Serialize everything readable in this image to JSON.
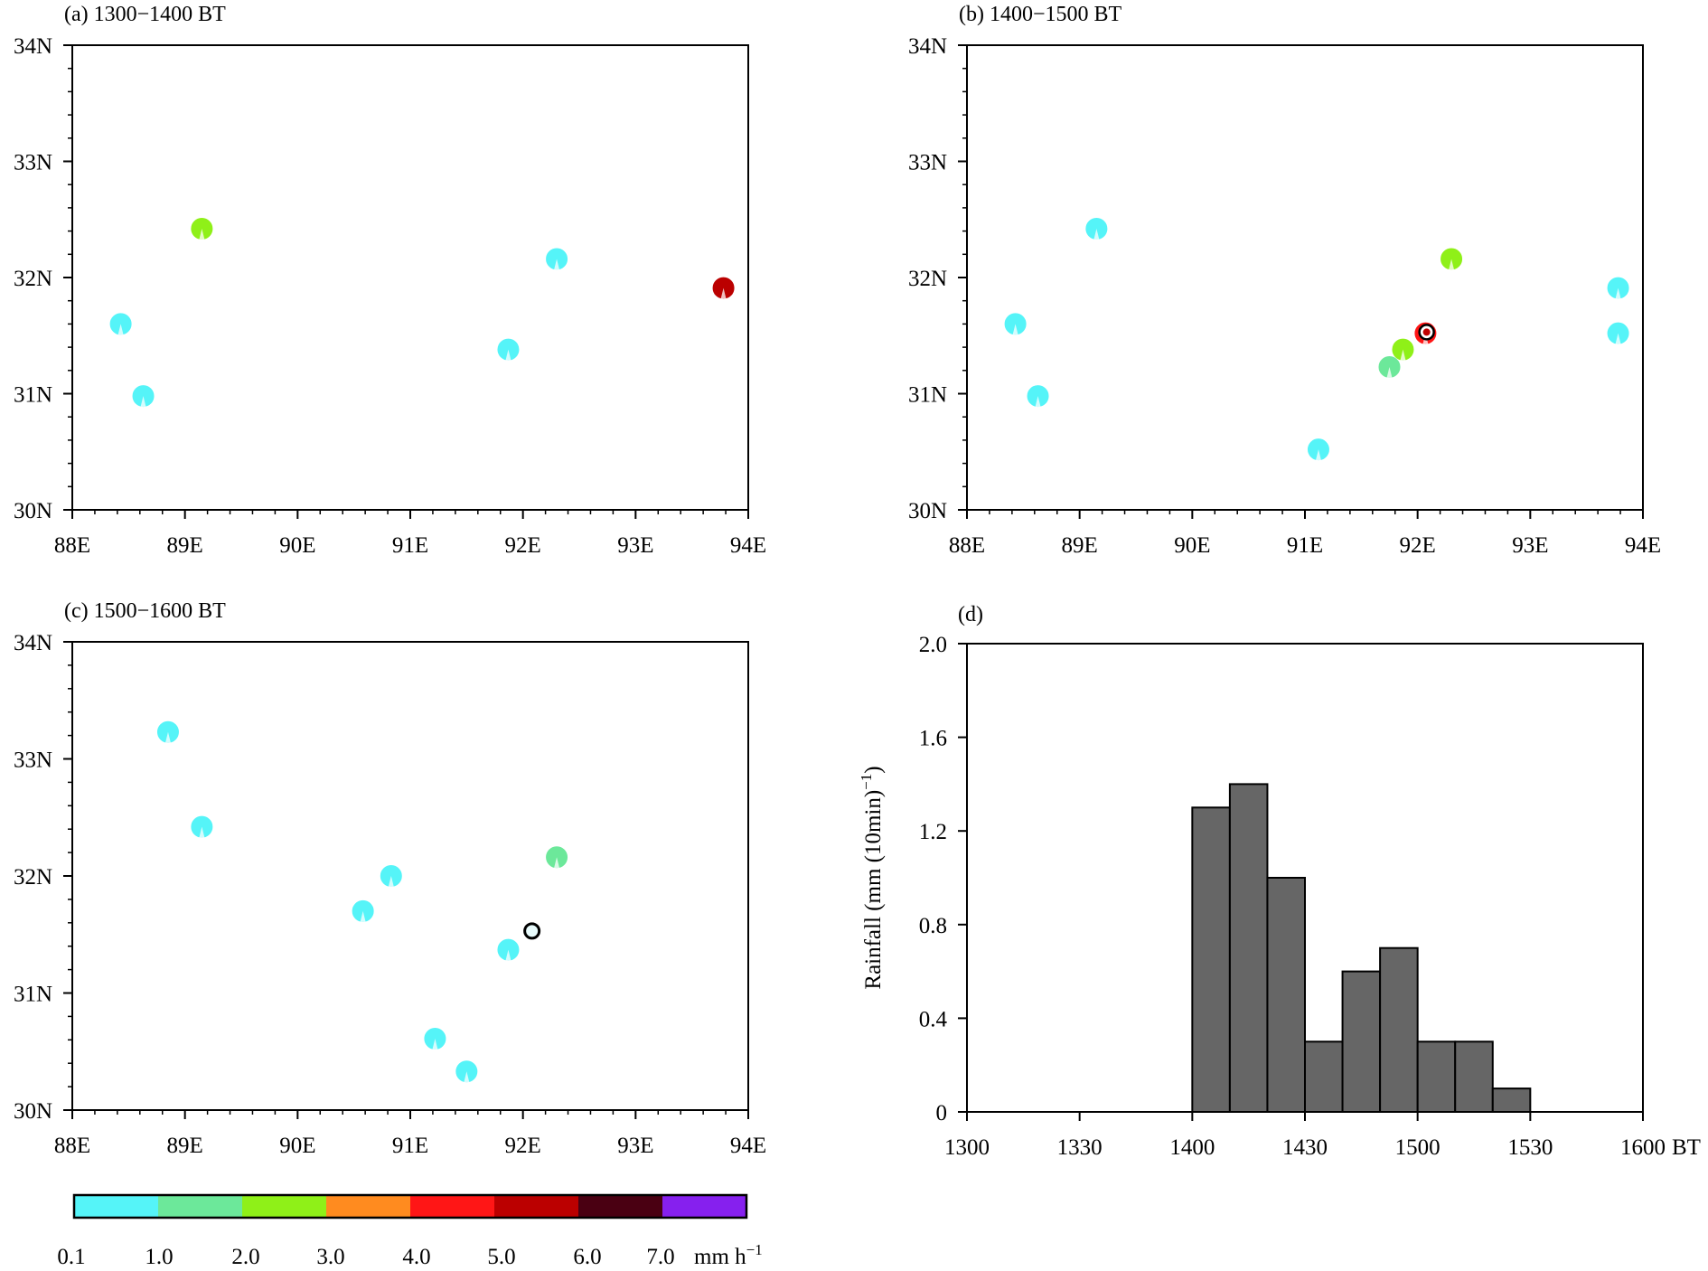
{
  "chart_data": [
    {
      "panel": "a",
      "type": "scatter",
      "title": "(a) 1300−1400 BT",
      "xlim": [
        88,
        94
      ],
      "ylim": [
        30,
        34
      ],
      "xticklabels": [
        "88E",
        "89E",
        "90E",
        "91E",
        "92E",
        "93E",
        "94E"
      ],
      "yticklabels": [
        "30N",
        "31N",
        "32N",
        "33N",
        "34N"
      ],
      "points": [
        {
          "lon": 88.43,
          "lat": 31.6,
          "class": 0
        },
        {
          "lon": 88.63,
          "lat": 30.98,
          "class": 0
        },
        {
          "lon": 89.15,
          "lat": 32.42,
          "class": 2
        },
        {
          "lon": 91.87,
          "lat": 31.38,
          "class": 0
        },
        {
          "lon": 92.3,
          "lat": 32.16,
          "class": 0
        },
        {
          "lon": 93.78,
          "lat": 31.91,
          "class": 5
        }
      ],
      "site": null
    },
    {
      "panel": "b",
      "type": "scatter",
      "title": "(b) 1400−1500 BT",
      "xlim": [
        88,
        94
      ],
      "ylim": [
        30,
        34
      ],
      "xticklabels": [
        "88E",
        "89E",
        "90E",
        "91E",
        "92E",
        "93E",
        "94E"
      ],
      "yticklabels": [
        "30N",
        "31N",
        "32N",
        "33N",
        "34N"
      ],
      "points": [
        {
          "lon": 88.43,
          "lat": 31.6,
          "class": 0
        },
        {
          "lon": 88.63,
          "lat": 30.98,
          "class": 0
        },
        {
          "lon": 89.15,
          "lat": 32.42,
          "class": 0
        },
        {
          "lon": 91.12,
          "lat": 30.52,
          "class": 0
        },
        {
          "lon": 91.75,
          "lat": 31.23,
          "class": 1
        },
        {
          "lon": 91.87,
          "lat": 31.38,
          "class": 2
        },
        {
          "lon": 92.07,
          "lat": 31.52,
          "class": 4
        },
        {
          "lon": 92.3,
          "lat": 32.16,
          "class": 2
        },
        {
          "lon": 93.78,
          "lat": 31.91,
          "class": 0
        },
        {
          "lon": 93.78,
          "lat": 31.52,
          "class": 0
        }
      ],
      "site": {
        "lon": 92.08,
        "lat": 31.53,
        "filled": true
      }
    },
    {
      "panel": "c",
      "type": "scatter",
      "title": "(c) 1500−1600 BT",
      "xlim": [
        88,
        94
      ],
      "ylim": [
        30,
        34
      ],
      "xticklabels": [
        "88E",
        "89E",
        "90E",
        "91E",
        "92E",
        "93E",
        "94E"
      ],
      "yticklabels": [
        "30N",
        "31N",
        "32N",
        "33N",
        "34N"
      ],
      "points": [
        {
          "lon": 88.85,
          "lat": 33.23,
          "class": 0
        },
        {
          "lon": 89.15,
          "lat": 32.42,
          "class": 0
        },
        {
          "lon": 90.58,
          "lat": 31.7,
          "class": 0
        },
        {
          "lon": 90.83,
          "lat": 32.0,
          "class": 0
        },
        {
          "lon": 91.22,
          "lat": 30.61,
          "class": 0
        },
        {
          "lon": 91.5,
          "lat": 30.33,
          "class": 0
        },
        {
          "lon": 91.87,
          "lat": 31.37,
          "class": 0
        },
        {
          "lon": 92.3,
          "lat": 32.16,
          "class": 1
        }
      ],
      "site": {
        "lon": 92.08,
        "lat": 31.53,
        "filled": false
      }
    },
    {
      "panel": "d",
      "type": "bar",
      "title": "(d)",
      "ylabel": "Rainfall (mm (10min)",
      "ylabel_sup": "−1",
      "ylabel_close": ")",
      "xunit": "BT",
      "xticklabels": [
        "1300",
        "1330",
        "1400",
        "1430",
        "1500",
        "1530",
        "1600"
      ],
      "yticklabels": [
        "0",
        "0.4",
        "0.8",
        "1.2",
        "1.6",
        "2.0"
      ],
      "ylim": [
        0,
        2.0
      ],
      "x_minutes_range": [
        0,
        180
      ],
      "bar_width_minutes": 10,
      "bars": [
        {
          "start_min": 60,
          "value": 1.3
        },
        {
          "start_min": 70,
          "value": 1.4
        },
        {
          "start_min": 80,
          "value": 1.0
        },
        {
          "start_min": 90,
          "value": 0.3
        },
        {
          "start_min": 100,
          "value": 0.6
        },
        {
          "start_min": 110,
          "value": 0.7
        },
        {
          "start_min": 120,
          "value": 0.3
        },
        {
          "start_min": 130,
          "value": 0.3
        },
        {
          "start_min": 140,
          "value": 0.1
        }
      ]
    }
  ],
  "colorbar": {
    "colors": [
      "#55f4f8",
      "#6ce89a",
      "#8ff018",
      "#ff8b1f",
      "#ff1616",
      "#bb0000",
      "#4a0012",
      "#8620ee"
    ],
    "labels": [
      "0.1",
      "1.0",
      "2.0",
      "3.0",
      "4.0",
      "5.0",
      "6.0",
      "7.0"
    ],
    "unit": "mm h",
    "unit_sup": "−1"
  },
  "bar_color": "#666666"
}
